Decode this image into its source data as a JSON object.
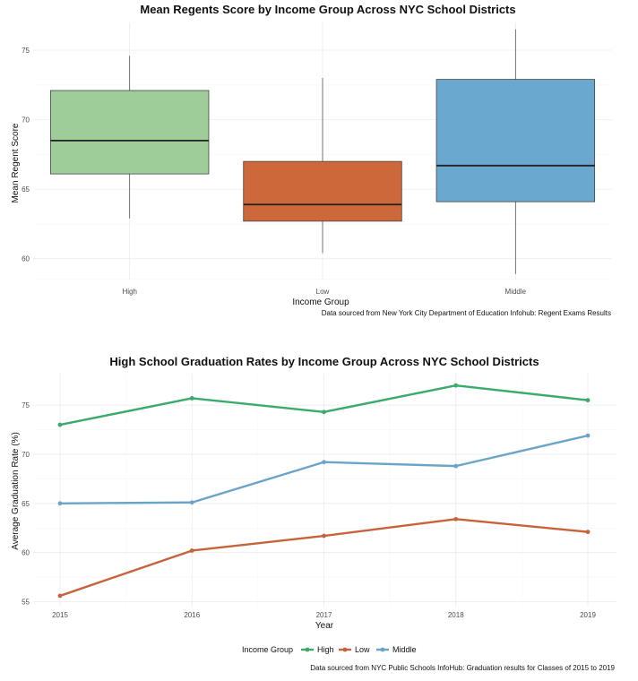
{
  "chart_data": [
    {
      "type": "box",
      "title": "Mean Regents Score by Income Group Across NYC School Districts",
      "xlabel": "Income Group",
      "ylabel": "Mean Regent Score",
      "ylim": [
        58.5,
        77.0
      ],
      "yticks": [
        "60",
        "65",
        "70",
        "75"
      ],
      "grid": true,
      "caption": "Data sourced from New York City Department of Education Infohub: Regent Exams Results",
      "groups": [
        {
          "category": "High",
          "min": 62.9,
          "q1": 66.1,
          "median": 68.5,
          "q3": 72.1,
          "max": 74.6,
          "color": "#9ecd99"
        },
        {
          "category": "Low",
          "min": 60.4,
          "q1": 62.7,
          "median": 63.9,
          "q3": 67.0,
          "max": 73.0,
          "color": "#cc6839"
        },
        {
          "category": "Middle",
          "min": 58.9,
          "q1": 64.1,
          "median": 66.7,
          "q3": 72.9,
          "max": 76.5,
          "color": "#6ba8cf"
        }
      ]
    },
    {
      "type": "line",
      "title": "High School Graduation Rates by Income Group Across NYC School Districts",
      "xlabel": "Year",
      "ylabel": "Average Graduation Rate (%)",
      "x": [
        "2015",
        "2016",
        "2017",
        "2018",
        "2019"
      ],
      "ylim": [
        54.5,
        78.2
      ],
      "yticks": [
        "55",
        "60",
        "65",
        "70",
        "75"
      ],
      "grid": true,
      "legend": {
        "title": "Income Group",
        "position": "bottom"
      },
      "caption": "Data sourced from NYC Public Schools InfoHub: Graduation results for Classes of 2015 to 2019",
      "series": [
        {
          "name": "High",
          "color": "#3aab6b",
          "values": [
            73.0,
            75.7,
            74.3,
            77.0,
            75.5
          ]
        },
        {
          "name": "Low",
          "color": "#c6633b",
          "values": [
            55.6,
            60.2,
            61.7,
            63.4,
            62.1
          ]
        },
        {
          "name": "Middle",
          "color": "#6ba4c9",
          "values": [
            65.0,
            65.1,
            69.2,
            68.8,
            71.9
          ]
        }
      ]
    }
  ]
}
